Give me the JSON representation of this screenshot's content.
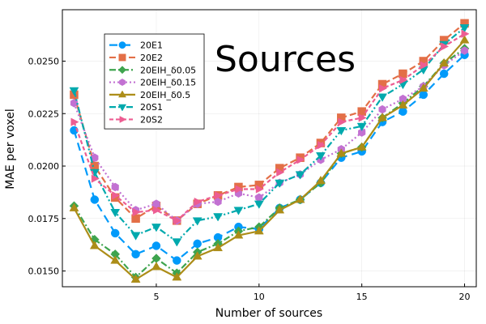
{
  "chart_data": {
    "type": "line",
    "title": "Sources",
    "xlabel": "Number of sources",
    "ylabel": "MAE per voxel",
    "xlim": [
      0.43,
      20.57
    ],
    "ylim": [
      0.01425,
      0.02745
    ],
    "xticks": [
      5,
      10,
      15,
      20
    ],
    "xtick_labels": [
      "5",
      "10",
      "15",
      "20"
    ],
    "yticks": [
      0.015,
      0.0175,
      0.02,
      0.0225,
      0.025
    ],
    "ytick_labels": [
      "0.0150",
      "0.0175",
      "0.0200",
      "0.0225",
      "0.0250"
    ],
    "grid": true,
    "legend_position": "top-left",
    "x": [
      1,
      2,
      3,
      4,
      5,
      6,
      7,
      8,
      9,
      10,
      11,
      12,
      13,
      14,
      15,
      16,
      17,
      18,
      19,
      20
    ],
    "series": [
      {
        "name": "20E1",
        "color": "#009AFA",
        "marker": "circle",
        "dash": "long-dash",
        "values": [
          0.0217,
          0.0184,
          0.0168,
          0.0158,
          0.0162,
          0.0155,
          0.0163,
          0.0166,
          0.0171,
          0.017,
          0.018,
          0.0184,
          0.0192,
          0.0204,
          0.0207,
          0.0221,
          0.0226,
          0.0234,
          0.0244,
          0.0253
        ]
      },
      {
        "name": "20E2",
        "color": "#E36F47",
        "marker": "square",
        "dash": "dash",
        "values": [
          0.0234,
          0.02,
          0.0185,
          0.0175,
          0.0181,
          0.0174,
          0.0182,
          0.0186,
          0.019,
          0.0191,
          0.0199,
          0.0204,
          0.0211,
          0.0223,
          0.0226,
          0.0239,
          0.0244,
          0.025,
          0.026,
          0.0268
        ]
      },
      {
        "name": "20EIH_δ0.05",
        "color": "#3EA44E",
        "marker": "diamond",
        "dash": "dash-dot",
        "values": [
          0.0181,
          0.0165,
          0.0158,
          0.0147,
          0.0156,
          0.0149,
          0.0159,
          0.0163,
          0.0169,
          0.0171,
          0.018,
          0.0184,
          0.0192,
          0.0206,
          0.0209,
          0.0223,
          0.023,
          0.0238,
          0.0249,
          0.0256
        ]
      },
      {
        "name": "20EIH_δ0.15",
        "color": "#C271D2",
        "marker": "hexagon",
        "dash": "dot",
        "values": [
          0.023,
          0.0204,
          0.019,
          0.0179,
          0.0182,
          0.0174,
          0.0182,
          0.0183,
          0.0187,
          0.0185,
          0.0192,
          0.0196,
          0.0203,
          0.0208,
          0.0216,
          0.0227,
          0.0232,
          0.0238,
          0.0248,
          0.0255
        ]
      },
      {
        "name": "20EIH_δ0.5",
        "color": "#AC8D18",
        "marker": "triangle-up",
        "dash": "solid",
        "values": [
          0.018,
          0.0162,
          0.0155,
          0.0146,
          0.0152,
          0.0147,
          0.0157,
          0.0161,
          0.0167,
          0.0169,
          0.0179,
          0.0184,
          0.0193,
          0.0206,
          0.0209,
          0.0223,
          0.0229,
          0.0237,
          0.0249,
          0.026
        ]
      },
      {
        "name": "20S1",
        "color": "#00A9AD",
        "marker": "triangle-down",
        "dash": "dash-dot-dot",
        "values": [
          0.0236,
          0.0197,
          0.0178,
          0.0167,
          0.0171,
          0.0164,
          0.0174,
          0.0176,
          0.0179,
          0.0182,
          0.0192,
          0.0196,
          0.0205,
          0.0217,
          0.0219,
          0.0233,
          0.0239,
          0.0246,
          0.0258,
          0.0266
        ]
      },
      {
        "name": "20S2",
        "color": "#ED5D92",
        "marker": "triangle-right",
        "dash": "short-dash",
        "values": [
          0.0221,
          0.0194,
          0.0186,
          0.0178,
          0.0179,
          0.0174,
          0.0183,
          0.0186,
          0.0189,
          0.0189,
          0.0197,
          0.0203,
          0.021,
          0.0221,
          0.0223,
          0.0237,
          0.0241,
          0.0248,
          0.0257,
          0.0263
        ]
      }
    ]
  }
}
